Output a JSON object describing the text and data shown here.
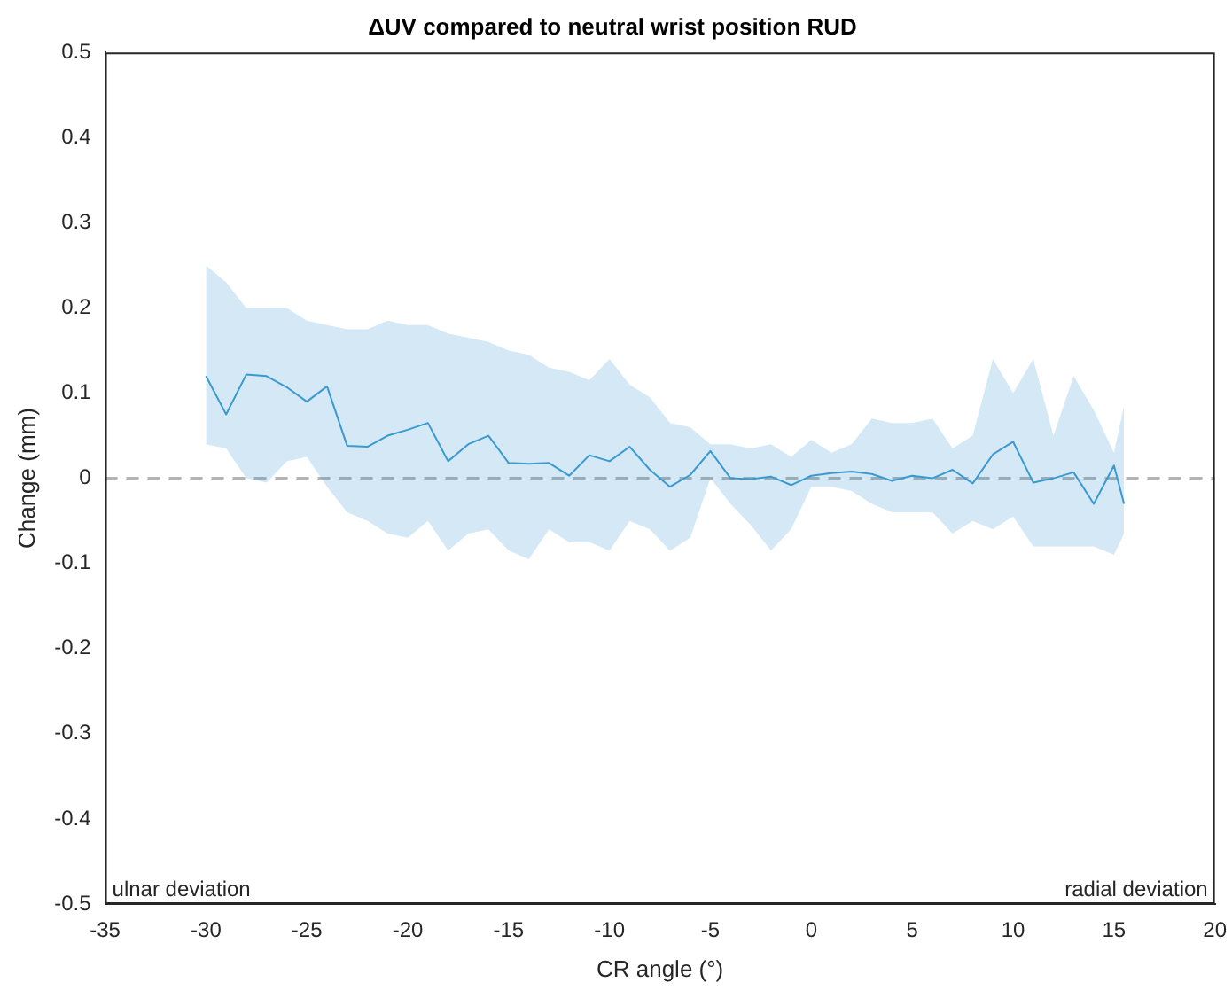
{
  "chart_data": {
    "type": "line",
    "title": "ΔUV compared to neutral wrist position RUD",
    "xlabel": "CR angle (°)",
    "ylabel": "Change (mm)",
    "x": [
      -30,
      -29,
      -28,
      -27,
      -26,
      -25,
      -24,
      -23,
      -22,
      -21,
      -20,
      -19,
      -18,
      -17,
      -16,
      -15,
      -14,
      -13,
      -12,
      -11,
      -10,
      -9,
      -8,
      -7,
      -6,
      -5,
      -4,
      -3,
      -2,
      -1,
      0,
      1,
      2,
      3,
      4,
      5,
      6,
      7,
      8,
      9,
      10,
      11,
      12,
      13,
      14,
      15,
      15.5
    ],
    "series": [
      {
        "color": "#3a9ad0",
        "values": [
          0.12,
          0.075,
          0.122,
          0.12,
          0.107,
          0.09,
          0.108,
          0.038,
          0.037,
          0.05,
          0.057,
          0.065,
          0.02,
          0.04,
          0.05,
          0.018,
          0.017,
          0.018,
          0.003,
          0.027,
          0.02,
          0.037,
          0.01,
          -0.01,
          0.004,
          0.032,
          0.0,
          -0.001,
          0.002,
          -0.008,
          0.003,
          0.006,
          0.008,
          0.005,
          -0.003,
          0.003,
          0.0,
          0.01,
          -0.006,
          0.028,
          0.043,
          -0.005,
          0.0,
          0.007,
          -0.03,
          0.015,
          -0.03
        ],
        "upper": [
          0.25,
          0.23,
          0.2,
          0.2,
          0.2,
          0.185,
          0.18,
          0.175,
          0.175,
          0.185,
          0.18,
          0.18,
          0.17,
          0.165,
          0.16,
          0.15,
          0.145,
          0.13,
          0.125,
          0.115,
          0.14,
          0.11,
          0.095,
          0.065,
          0.06,
          0.04,
          0.04,
          0.035,
          0.04,
          0.025,
          0.045,
          0.03,
          0.04,
          0.07,
          0.065,
          0.065,
          0.07,
          0.035,
          0.05,
          0.14,
          0.1,
          0.14,
          0.05,
          0.12,
          0.08,
          0.03,
          0.085
        ],
        "lower": [
          0.04,
          0.035,
          0.0,
          -0.005,
          0.02,
          0.025,
          -0.01,
          -0.04,
          -0.05,
          -0.065,
          -0.07,
          -0.05,
          -0.085,
          -0.065,
          -0.06,
          -0.085,
          -0.095,
          -0.06,
          -0.075,
          -0.075,
          -0.085,
          -0.05,
          -0.06,
          -0.085,
          -0.07,
          0.0,
          -0.03,
          -0.055,
          -0.085,
          -0.06,
          -0.01,
          -0.01,
          -0.015,
          -0.03,
          -0.04,
          -0.04,
          -0.04,
          -0.065,
          -0.05,
          -0.06,
          -0.045,
          -0.08,
          -0.08,
          -0.08,
          -0.08,
          -0.09,
          -0.065
        ]
      }
    ],
    "xlim": [
      -35,
      20
    ],
    "xticks": [
      -35,
      -30,
      -25,
      -20,
      -15,
      -10,
      -5,
      0,
      5,
      10,
      15,
      20
    ],
    "ylim": [
      -0.5,
      0.5
    ],
    "yticks": [
      -0.5,
      -0.4,
      -0.3,
      -0.2,
      -0.1,
      0,
      0.1,
      0.2,
      0.3,
      0.4,
      0.5
    ],
    "ref_lines": [
      {
        "axis": "y",
        "value": 0,
        "color": "#b3b3b3",
        "line_style": "dashed"
      }
    ],
    "annotations": [
      "ulnar deviation",
      "radial deviation"
    ],
    "grid": false,
    "legend": false
  }
}
